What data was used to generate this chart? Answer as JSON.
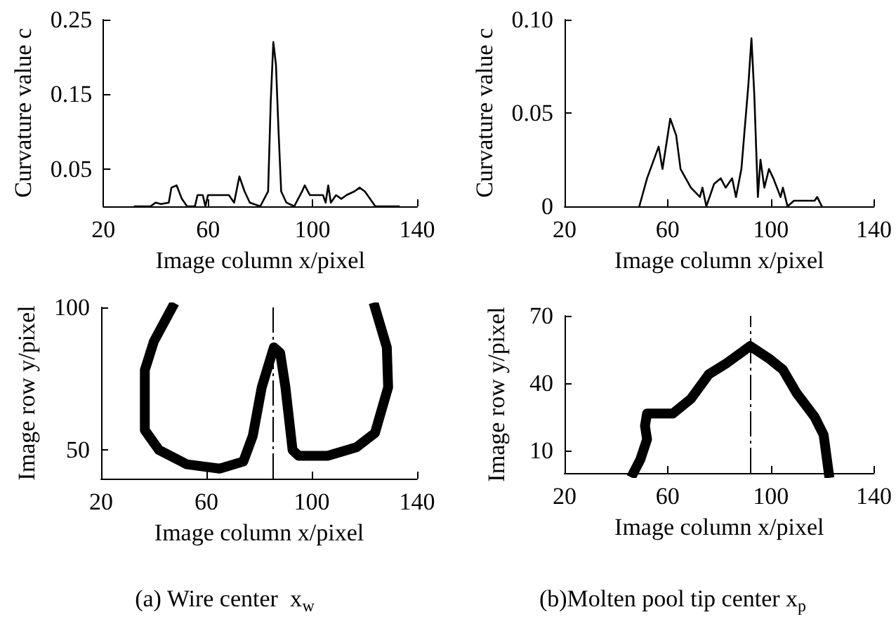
{
  "chart_data": [
    {
      "type": "line",
      "ylabel": "Curvature value c",
      "xlabel": "Image column x/pixel",
      "xlim": [
        20,
        140
      ],
      "xticks": [
        20,
        60,
        100,
        140
      ],
      "ylim": [
        0,
        0.25
      ],
      "yticks": [
        0.05,
        0.15,
        0.25
      ],
      "series": [
        {
          "color": "#000000",
          "x": [
            32,
            38,
            40,
            42,
            45,
            46,
            48,
            50,
            52,
            55,
            56,
            58,
            59,
            60,
            62,
            68,
            70,
            72,
            74,
            76,
            80,
            83,
            84,
            85,
            86,
            87,
            88,
            90,
            93,
            96,
            97,
            99,
            104,
            105,
            106,
            107,
            109,
            111,
            113,
            116,
            118,
            120,
            122,
            124,
            133
          ],
          "values": [
            0,
            0,
            0.005,
            0.003,
            0.005,
            0.025,
            0.028,
            0.01,
            0,
            0,
            0.015,
            0.015,
            0,
            0.015,
            0.015,
            0.015,
            0.005,
            0.04,
            0.02,
            0.005,
            0,
            0.02,
            0.14,
            0.22,
            0.19,
            0.1,
            0.02,
            0.005,
            0,
            0.02,
            0.028,
            0.015,
            0.015,
            0.005,
            0.028,
            0.005,
            0.015,
            0.01,
            0.015,
            0.02,
            0.025,
            0.02,
            0.01,
            0,
            0
          ]
        }
      ]
    },
    {
      "type": "line",
      "ylabel": "Curvature value c",
      "xlabel": "Image column x/pixel",
      "xlim": [
        20,
        140
      ],
      "xticks": [
        20,
        60,
        100,
        140
      ],
      "ylim": [
        0,
        0.1
      ],
      "yticks": [
        0,
        0.05,
        {
          "value": 0.1,
          "label": "0.10"
        }
      ],
      "series": [
        {
          "color": "#000000",
          "x": [
            49,
            52,
            56.5,
            58,
            61,
            63.3,
            65,
            69,
            72.5,
            73.5,
            75,
            78,
            80.6,
            82.5,
            85,
            86.5,
            88.6,
            91.3,
            92.5,
            93.6,
            95,
            96,
            97.5,
            99.3,
            101,
            103.8,
            104.7,
            106.5,
            109,
            117,
            118,
            119.8
          ],
          "values": [
            0,
            0.015,
            0.032,
            0.02,
            0.047,
            0.038,
            0.02,
            0.01,
            0.005,
            0.01,
            0,
            0.012,
            0.015,
            0.01,
            0.015,
            0.005,
            0.02,
            0.065,
            0.09,
            0.06,
            0.005,
            0.025,
            0.01,
            0.02,
            0.015,
            0.005,
            0.01,
            0,
            0.003,
            0.003,
            0.005,
            0
          ]
        }
      ]
    },
    {
      "type": "line",
      "ylabel": "Image row y/pixel",
      "xlabel": "Image column x/pixel",
      "xlim": [
        20,
        140
      ],
      "xticks": [
        20,
        60,
        100,
        140
      ],
      "ylim": [
        40,
        100
      ],
      "yticks": [
        50,
        100
      ],
      "annotations": [
        "(a) Wire center  x$_{w}$"
      ],
      "ref_lines": [
        {
          "axis": "x",
          "value": 85
        }
      ],
      "series": [
        {
          "color": "#000000",
          "x": [
            47,
            40,
            36.6,
            36.6,
            42,
            52.6,
            65,
            74,
            77.6,
            81,
            85.6,
            88,
            90,
            92.7,
            95,
            106,
            117,
            124,
            129,
            128.5,
            124
          ],
          "values": [
            100,
            88,
            78,
            57,
            50,
            45,
            43.5,
            46,
            55,
            72,
            86,
            84,
            72,
            50,
            48,
            48,
            51,
            56,
            72,
            86,
            100
          ]
        }
      ]
    },
    {
      "type": "line",
      "ylabel": "Image row y/pixel",
      "xlabel": "Image column x/pixel",
      "xlim": [
        20,
        140
      ],
      "xticks": [
        20,
        60,
        100,
        140
      ],
      "ylim": [
        0,
        70
      ],
      "yticks": [
        10,
        40,
        70
      ],
      "annotations": [
        "(b)Molten pool tip center x$_{p}$"
      ],
      "ref_lines": [
        {
          "axis": "x",
          "value": 92
        }
      ],
      "series": [
        {
          "color": "#000000",
          "x": [
            46.7,
            49.4,
            52,
            51.2,
            52,
            62,
            69,
            76,
            83,
            92,
            99.3,
            104.7,
            110,
            117,
            120.5,
            122.5
          ],
          "values": [
            0,
            6,
            15,
            21,
            26.5,
            26.5,
            33,
            44,
            49,
            56.5,
            51,
            46,
            35.6,
            25,
            17,
            0
          ]
        }
      ]
    }
  ]
}
